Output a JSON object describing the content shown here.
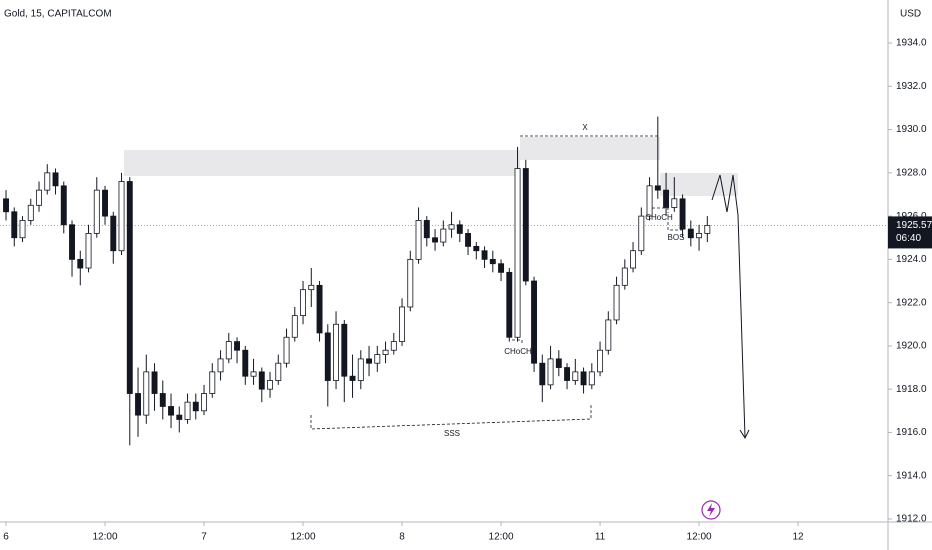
{
  "chart_data": {
    "type": "candlestick",
    "title": "Gold, 15, CAPITALCOM",
    "currency": "USD",
    "x": [
      0,
      1,
      2,
      3,
      4,
      5,
      6,
      7,
      8,
      9,
      10,
      11,
      12,
      13,
      14,
      15,
      16,
      17,
      18,
      19,
      20,
      21,
      22,
      23,
      24,
      25,
      26,
      27,
      28,
      29,
      30,
      31,
      32,
      33,
      34,
      35,
      36,
      37,
      38,
      39,
      40,
      41,
      42,
      43,
      44,
      45,
      46,
      47,
      48,
      49,
      50,
      51,
      52,
      53,
      54,
      55,
      56,
      57,
      58,
      59,
      60,
      61,
      62,
      63,
      64,
      65,
      66,
      67,
      68,
      69,
      70,
      71,
      72,
      73,
      74,
      75,
      76,
      77,
      78,
      79,
      80,
      81,
      82,
      83,
      84,
      85
    ],
    "open": [
      1926.8,
      1926.2,
      1925.0,
      1925.8,
      1926.5,
      1927.2,
      1928.0,
      1927.4,
      1925.6,
      1924.0,
      1923.6,
      1925.2,
      1927.2,
      1926.0,
      1924.4,
      1927.6,
      1917.8,
      1916.8,
      1918.8,
      1917.8,
      1917.2,
      1916.8,
      1916.6,
      1917.4,
      1917.0,
      1917.8,
      1918.8,
      1919.4,
      1920.2,
      1919.8,
      1918.6,
      1918.8,
      1918.0,
      1918.4,
      1919.2,
      1920.4,
      1921.4,
      1922.6,
      1922.8,
      1920.6,
      1918.4,
      1921.0,
      1918.6,
      1918.4,
      1919.4,
      1919.2,
      1919.6,
      1919.8,
      1920.2,
      1921.8,
      1924.0,
      1925.8,
      1925.0,
      1924.8,
      1925.4,
      1925.6,
      1925.2,
      1924.6,
      1924.4,
      1924.0,
      1923.8,
      1923.4,
      1920.4,
      1928.2,
      1923.0,
      1919.2,
      1918.2,
      1919.4,
      1919.0,
      1918.4,
      1918.8,
      1918.2,
      1918.8,
      1919.8,
      1921.2,
      1922.8,
      1923.6,
      1924.4,
      1926.0,
      1927.4,
      1927.2,
      1926.4,
      1926.8,
      1925.4,
      1925.0,
      1925.2
    ],
    "high": [
      1927.2,
      1926.4,
      1926.0,
      1926.8,
      1927.6,
      1928.4,
      1928.2,
      1927.6,
      1925.8,
      1924.4,
      1925.6,
      1927.8,
      1927.4,
      1926.2,
      1928.0,
      1927.8,
      1919.0,
      1919.6,
      1919.2,
      1918.4,
      1917.8,
      1917.2,
      1917.8,
      1917.8,
      1918.2,
      1919.2,
      1919.8,
      1920.6,
      1920.4,
      1920.0,
      1919.4,
      1919.0,
      1918.8,
      1919.6,
      1920.8,
      1921.8,
      1923.0,
      1923.6,
      1923.0,
      1921.0,
      1921.6,
      1921.2,
      1919.6,
      1919.8,
      1920.0,
      1920.0,
      1920.2,
      1920.6,
      1922.2,
      1924.4,
      1926.4,
      1926.0,
      1925.4,
      1925.8,
      1926.2,
      1925.8,
      1925.4,
      1924.8,
      1924.6,
      1924.4,
      1924.0,
      1923.6,
      1929.2,
      1928.6,
      1923.2,
      1919.6,
      1920.0,
      1919.8,
      1919.2,
      1919.4,
      1919.0,
      1919.2,
      1920.2,
      1921.6,
      1923.2,
      1924.0,
      1924.8,
      1926.4,
      1927.8,
      1930.6,
      1928.0,
      1927.8,
      1927.0,
      1925.8,
      1925.6,
      1926.0
    ],
    "low": [
      1925.8,
      1924.6,
      1924.8,
      1925.6,
      1926.2,
      1927.0,
      1927.0,
      1925.2,
      1923.2,
      1922.8,
      1923.4,
      1925.0,
      1925.6,
      1923.8,
      1924.2,
      1915.4,
      1915.8,
      1916.4,
      1917.0,
      1916.6,
      1916.2,
      1916.0,
      1916.4,
      1916.6,
      1916.8,
      1917.6,
      1918.4,
      1919.2,
      1919.2,
      1918.2,
      1918.2,
      1917.4,
      1917.6,
      1918.2,
      1919.0,
      1920.2,
      1921.0,
      1921.8,
      1920.2,
      1917.2,
      1918.0,
      1917.4,
      1917.6,
      1918.0,
      1918.6,
      1918.8,
      1919.2,
      1919.6,
      1920.0,
      1921.6,
      1923.8,
      1924.6,
      1924.4,
      1924.6,
      1925.0,
      1924.8,
      1924.2,
      1924.0,
      1923.6,
      1923.4,
      1923.0,
      1920.2,
      1920.2,
      1922.8,
      1918.8,
      1917.4,
      1918.0,
      1918.6,
      1918.0,
      1918.2,
      1917.8,
      1918.0,
      1918.6,
      1919.6,
      1921.0,
      1922.6,
      1923.4,
      1924.2,
      1925.8,
      1926.8,
      1926.0,
      1926.2,
      1925.0,
      1924.6,
      1924.4,
      1924.8
    ],
    "close": [
      1926.2,
      1925.0,
      1925.8,
      1926.5,
      1927.2,
      1928.0,
      1927.4,
      1925.6,
      1924.0,
      1923.6,
      1925.2,
      1927.2,
      1926.0,
      1924.4,
      1927.6,
      1917.8,
      1916.8,
      1918.8,
      1917.8,
      1917.2,
      1916.8,
      1916.6,
      1917.4,
      1917.0,
      1917.8,
      1918.8,
      1919.4,
      1920.2,
      1919.8,
      1918.6,
      1918.8,
      1918.0,
      1918.4,
      1919.2,
      1920.4,
      1921.4,
      1922.6,
      1922.8,
      1920.6,
      1918.4,
      1921.0,
      1918.6,
      1918.4,
      1919.4,
      1919.2,
      1919.6,
      1919.8,
      1920.2,
      1921.8,
      1924.0,
      1925.8,
      1925.0,
      1924.8,
      1925.4,
      1925.6,
      1925.2,
      1924.6,
      1924.4,
      1924.0,
      1923.8,
      1923.4,
      1920.4,
      1928.2,
      1923.0,
      1919.2,
      1918.2,
      1919.4,
      1919.0,
      1918.4,
      1918.8,
      1918.2,
      1918.8,
      1919.8,
      1921.2,
      1922.8,
      1923.6,
      1924.4,
      1926.0,
      1927.4,
      1927.2,
      1926.4,
      1926.8,
      1925.4,
      1925.0,
      1925.2,
      1925.57
    ],
    "up_color": "#ffffff",
    "down_color": "#131722",
    "xlim": [
      -0.73,
      106.9
    ],
    "xticks": [
      {
        "value": 0,
        "label": "6"
      },
      {
        "value": 12,
        "label": "12:00"
      },
      {
        "value": 24,
        "label": "7"
      },
      {
        "value": 36,
        "label": "12:00"
      },
      {
        "value": 48,
        "label": "8"
      },
      {
        "value": 60,
        "label": "12:00"
      },
      {
        "value": 72,
        "label": "11"
      },
      {
        "value": 84,
        "label": "12:00"
      },
      {
        "value": 96,
        "label": "12"
      }
    ],
    "ylim": [
      1911.86,
      1935.99
    ],
    "yticks": [
      {
        "value": 1912,
        "label": "1912.0"
      },
      {
        "value": 1914,
        "label": "1914.0"
      },
      {
        "value": 1916,
        "label": "1916.0"
      },
      {
        "value": 1918,
        "label": "1918.0"
      },
      {
        "value": 1920,
        "label": "1920.0"
      },
      {
        "value": 1922,
        "label": "1922.0"
      },
      {
        "value": 1924,
        "label": "1924.0"
      },
      {
        "value": 1926,
        "label": "1926.0"
      },
      {
        "value": 1928,
        "label": "1928.0"
      },
      {
        "value": 1930,
        "label": "1930.0"
      },
      {
        "value": 1932,
        "label": "1932.0"
      },
      {
        "value": 1934,
        "label": "1934.0"
      }
    ],
    "last_price": {
      "value": 1925.57,
      "label": "1925.57"
    },
    "countdown": "06:40",
    "annotations": [
      "X",
      "CHoCH",
      "CHoCH",
      "BOS",
      "SSS"
    ]
  }
}
